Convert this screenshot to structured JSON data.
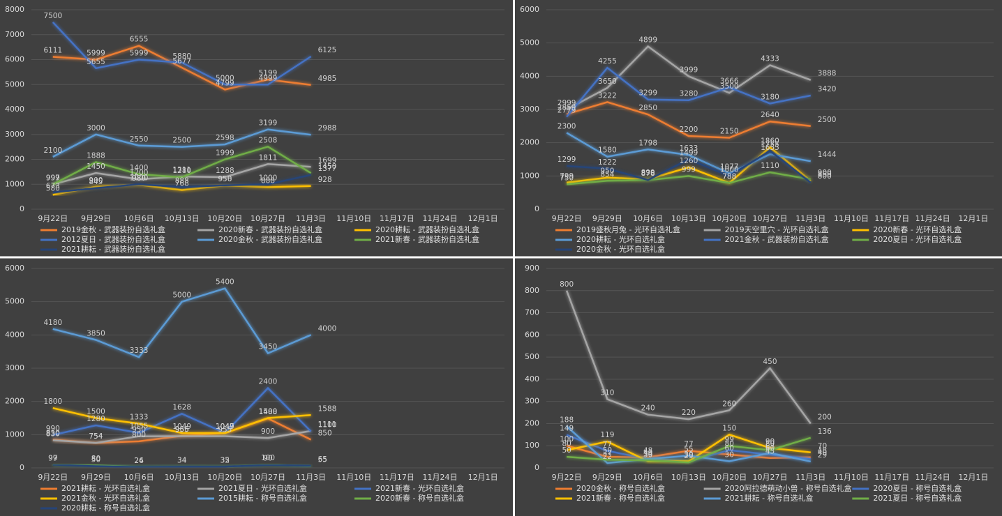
{
  "chart_data": [
    {
      "type": "line",
      "categories": [
        "9月22日",
        "9月29日",
        "10月6日",
        "10月13日",
        "10月20日",
        "10月27日",
        "11月3日",
        "11月10日",
        "11月17日",
        "11月24日",
        "12月1日"
      ],
      "ylim": [
        0,
        8000
      ],
      "yticks": [
        0,
        1000,
        2000,
        3000,
        4000,
        5000,
        6000,
        7000,
        8000
      ],
      "grid": true,
      "series": [
        {
          "name": "2019金秋 - 武器装扮自选礼盒",
          "color": "#ed7d31",
          "values": [
            6111,
            5999,
            6555,
            5677,
            4799,
            5199,
            4985,
            null,
            null,
            null,
            null
          ]
        },
        {
          "name": "2020新春 - 武器装扮自选礼盒",
          "color": "#a5a5a5",
          "values": [
            999,
            1450,
            1200,
            1311,
            1288,
            1811,
            1699,
            null,
            null,
            null,
            null
          ]
        },
        {
          "name": "2020耕耘 - 武器装扮自选礼盒",
          "color": "#ffc000",
          "values": [
            580,
            900,
            980,
            768,
            950,
            888,
            928,
            null,
            null,
            null,
            null
          ]
        },
        {
          "name": "2012夏日 - 武器装扮自选礼盒",
          "color": "#4472c4",
          "values": [
            7500,
            5655,
            5999,
            5880,
            5000,
            4999,
            6125,
            null,
            null,
            null,
            null
          ]
        },
        {
          "name": "2020金秋 - 武器装扮自选礼盒",
          "color": "#5b9bd5",
          "values": [
            2100,
            3000,
            2550,
            2500,
            2598,
            3199,
            2988,
            null,
            null,
            null,
            null
          ]
        },
        {
          "name": "2021新春 - 武器装扮自选礼盒",
          "color": "#70ad47",
          "values": [
            997,
            1888,
            1400,
            1280,
            1999,
            2508,
            1450,
            null,
            null,
            null,
            null
          ]
        },
        {
          "name": "2021耕耘 - 武器装扮自选礼盒",
          "color": "#264478",
          "values": [
            673,
            845,
            1000,
            888,
            956,
            1000,
            1377,
            null,
            null,
            null,
            null
          ]
        }
      ]
    },
    {
      "type": "line",
      "categories": [
        "9月22日",
        "9月29日",
        "10月6日",
        "10月13日",
        "10月20日",
        "10月27日",
        "11月3日",
        "11月10日",
        "11月17日",
        "11月24日",
        "12月1日"
      ],
      "ylim": [
        0,
        6000
      ],
      "yticks": [
        0,
        1000,
        2000,
        3000,
        4000,
        5000,
        6000
      ],
      "grid": true,
      "series": [
        {
          "name": "2019盛秋月兔 - 光环自选礼盒",
          "color": "#ed7d31",
          "values": [
            2859,
            3222,
            2850,
            2200,
            2150,
            2640,
            2500,
            null,
            null,
            null,
            null
          ]
        },
        {
          "name": "2019天空里穴 - 光环自选礼盒",
          "color": "#a5a5a5",
          "values": [
            2999,
            3650,
            4899,
            3999,
            3500,
            4333,
            3888,
            null,
            null,
            null,
            null
          ]
        },
        {
          "name": "2020新春 - 光环自选礼盒",
          "color": "#ffc000",
          "values": [
            799,
            950,
            899,
            1260,
            788,
            1860,
            850,
            null,
            null,
            null,
            null
          ]
        },
        {
          "name": "2020耕耘 - 光环自选礼盒",
          "color": "#5b9bd5",
          "values": [
            2300,
            1580,
            1798,
            1633,
            1077,
            1655,
            1444,
            null,
            null,
            null,
            null
          ]
        },
        {
          "name": "2021金秋 - 武器装扮自选礼盒",
          "color": "#4472c4",
          "values": [
            2779,
            4255,
            3299,
            3280,
            3666,
            3180,
            3420,
            null,
            null,
            null,
            null
          ]
        },
        {
          "name": "2020夏日 - 光环自选礼盒",
          "color": "#70ad47",
          "values": [
            750,
            854,
            876,
            999,
            788,
            1110,
            900,
            null,
            null,
            null,
            null
          ]
        },
        {
          "name": "2020金秋 - 光环自选礼盒",
          "color": "#264478",
          "values": [
            1299,
            1222,
            878,
            1499,
            1000,
            1755,
            800,
            null,
            null,
            null,
            null
          ]
        }
      ]
    },
    {
      "type": "line",
      "categories": [
        "9月22日",
        "9月29日",
        "10月6日",
        "10月13日",
        "10月20日",
        "10月27日",
        "11月3日",
        "11月10日",
        "11月17日",
        "11月24日",
        "12月1日"
      ],
      "ylim": [
        0,
        6000
      ],
      "yticks": [
        0,
        1000,
        2000,
        3000,
        4000,
        5000,
        6000
      ],
      "grid": true,
      "series": [
        {
          "name": "2021耕耘 - 光环自选礼盒",
          "color": "#ed7d31",
          "values": [
            850,
            754,
            800,
            966,
            1049,
            1488,
            850,
            null,
            null,
            null,
            null
          ]
        },
        {
          "name": "2021夏日 - 光环自选礼盒",
          "color": "#a5a5a5",
          "values": [
            830,
            754,
            950,
            955,
            955,
            900,
            1111,
            null,
            null,
            null,
            null
          ]
        },
        {
          "name": "2021新春 - 光环自选礼盒",
          "color": "#4472c4",
          "values": [
            990,
            1280,
            1055,
            1628,
            1049,
            2400,
            1100,
            null,
            null,
            null,
            null
          ]
        },
        {
          "name": "2021金秋 - 光环自选礼盒",
          "color": "#ffc000",
          "values": [
            1800,
            1500,
            1333,
            1049,
            1047,
            1500,
            1588,
            null,
            null,
            null,
            null
          ]
        },
        {
          "name": "2015耕耘 - 称号自选礼盒",
          "color": "#5b9bd5",
          "values": [
            4180,
            3850,
            3333,
            5000,
            5400,
            3450,
            4000,
            null,
            null,
            null,
            null
          ]
        },
        {
          "name": "2020新春 - 称号自选礼盒",
          "color": "#70ad47",
          "values": [
            99,
            80,
            26,
            34,
            32,
            100,
            55,
            null,
            null,
            null,
            null
          ]
        },
        {
          "name": "2020耕耘 - 称号自选礼盒",
          "color": "#264478",
          "values": [
            97,
            50,
            24,
            34,
            35,
            90,
            65,
            null,
            null,
            null,
            null
          ]
        }
      ]
    },
    {
      "type": "line",
      "categories": [
        "9月22日",
        "9月29日",
        "10月6日",
        "10月13日",
        "10月20日",
        "10月27日",
        "11月3日",
        "11月10日",
        "11月17日",
        "11月24日",
        "12月1日"
      ],
      "ylim": [
        0,
        900
      ],
      "yticks": [
        0,
        100,
        200,
        300,
        400,
        500,
        600,
        700,
        800,
        900
      ],
      "grid": true,
      "series": [
        {
          "name": "2020金秋 - 称号自选礼盒",
          "color": "#ed7d31",
          "values": [
            100,
            50,
            48,
            77,
            60,
            45,
            48,
            null,
            null,
            null,
            null
          ]
        },
        {
          "name": "2020阿拉德萌动小兽 - 称号自选礼盒",
          "color": "#a5a5a5",
          "values": [
            800,
            310,
            240,
            220,
            260,
            450,
            200,
            null,
            null,
            null,
            null
          ]
        },
        {
          "name": "2020夏日 - 称号自选礼盒",
          "color": "#4472c4",
          "values": [
            149,
            77,
            40,
            30,
            80,
            60,
            40,
            null,
            null,
            null,
            null
          ]
        },
        {
          "name": "2021新春 - 称号自选礼盒",
          "color": "#ffc000",
          "values": [
            80,
            119,
            30,
            30,
            150,
            90,
            70,
            null,
            null,
            null,
            null
          ]
        },
        {
          "name": "2021耕耘 - 称号自选礼盒",
          "color": "#5b9bd5",
          "values": [
            188,
            22,
            40,
            55,
            30,
            67,
            29,
            null,
            null,
            null,
            null
          ]
        },
        {
          "name": "2021夏日 - 称号自选礼盒",
          "color": "#70ad47",
          "values": [
            50,
            37,
            34,
            25,
            99,
            80,
            136,
            null,
            null,
            null,
            null
          ]
        }
      ]
    }
  ]
}
